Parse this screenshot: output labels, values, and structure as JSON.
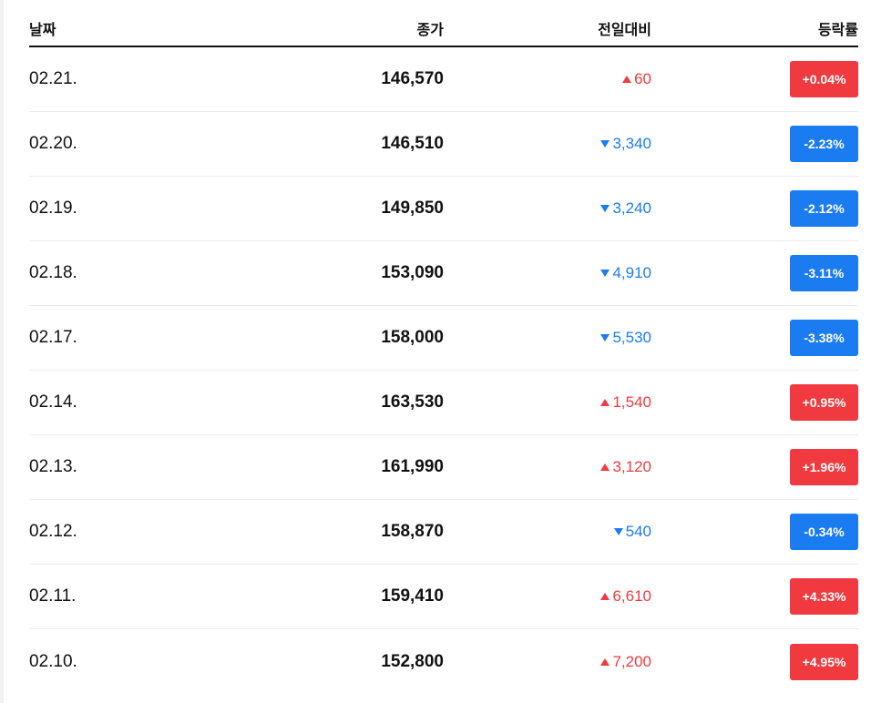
{
  "header": {
    "date": "날짜",
    "close": "종가",
    "change": "전일대비",
    "rate": "등락률"
  },
  "colors": {
    "up": "#f03a3f",
    "down": "#1a7cf0"
  },
  "rows": [
    {
      "date": "02.21.",
      "close": "146,570",
      "change": "60",
      "rate": "+0.04%",
      "dir": "up"
    },
    {
      "date": "02.20.",
      "close": "146,510",
      "change": "3,340",
      "rate": "-2.23%",
      "dir": "down"
    },
    {
      "date": "02.19.",
      "close": "149,850",
      "change": "3,240",
      "rate": "-2.12%",
      "dir": "down"
    },
    {
      "date": "02.18.",
      "close": "153,090",
      "change": "4,910",
      "rate": "-3.11%",
      "dir": "down"
    },
    {
      "date": "02.17.",
      "close": "158,000",
      "change": "5,530",
      "rate": "-3.38%",
      "dir": "down"
    },
    {
      "date": "02.14.",
      "close": "163,530",
      "change": "1,540",
      "rate": "+0.95%",
      "dir": "up"
    },
    {
      "date": "02.13.",
      "close": "161,990",
      "change": "3,120",
      "rate": "+1.96%",
      "dir": "up"
    },
    {
      "date": "02.12.",
      "close": "158,870",
      "change": "540",
      "rate": "-0.34%",
      "dir": "down"
    },
    {
      "date": "02.11.",
      "close": "159,410",
      "change": "6,610",
      "rate": "+4.33%",
      "dir": "up"
    },
    {
      "date": "02.10.",
      "close": "152,800",
      "change": "7,200",
      "rate": "+4.95%",
      "dir": "up"
    }
  ]
}
